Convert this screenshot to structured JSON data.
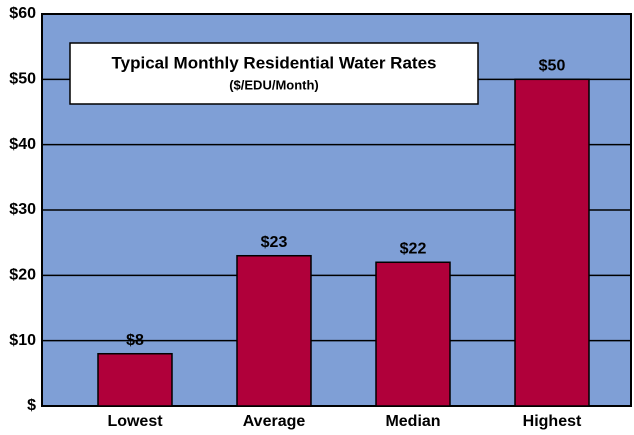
{
  "chart_data": {
    "type": "bar",
    "title": "Typical Monthly Residential Water Rates",
    "subtitle": "($/EDU/Month)",
    "categories": [
      "Lowest",
      "Average",
      "Median",
      "Highest"
    ],
    "values": [
      8,
      23,
      22,
      50
    ],
    "value_labels": [
      "$8",
      "$23",
      "$22",
      "$50"
    ],
    "color": "#b0003a",
    "ylim": [
      0,
      60
    ],
    "yticks": [
      {
        "value": 0,
        "label": "$"
      },
      {
        "value": 10,
        "label": "$10"
      },
      {
        "value": 20,
        "label": "$20"
      },
      {
        "value": 30,
        "label": "$30"
      },
      {
        "value": 40,
        "label": "$40"
      },
      {
        "value": 50,
        "label": "$50"
      },
      {
        "value": 60,
        "label": "$60"
      }
    ],
    "grid": true
  }
}
